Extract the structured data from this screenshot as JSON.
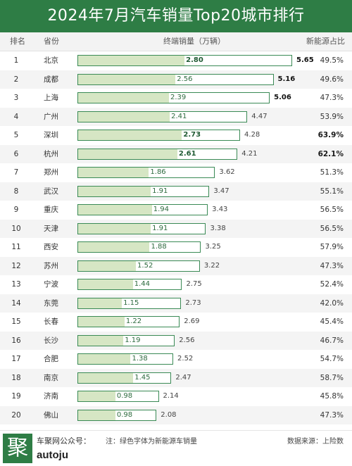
{
  "title": "2024年7月汽车销量Top20城市排行",
  "headers": {
    "rank": "排名",
    "province": "省份",
    "sales": "终端销量（万辆）",
    "share": "新能源占比"
  },
  "chart_data": {
    "type": "bar",
    "unit": "万辆",
    "categories": [
      "北京",
      "成都",
      "上海",
      "广州",
      "深圳",
      "杭州",
      "郑州",
      "武汉",
      "重庆",
      "天津",
      "西安",
      "苏州",
      "宁波",
      "东莞",
      "长春",
      "长沙",
      "合肥",
      "南京",
      "济南",
      "佛山"
    ],
    "series": [
      {
        "name": "新能源车销量",
        "values": [
          2.8,
          2.56,
          2.39,
          2.41,
          2.73,
          2.61,
          1.86,
          1.91,
          1.94,
          1.91,
          1.88,
          1.52,
          1.44,
          1.15,
          1.22,
          1.19,
          1.38,
          1.45,
          0.98,
          0.98
        ]
      },
      {
        "name": "终端销量",
        "values": [
          5.65,
          5.16,
          5.06,
          4.47,
          4.28,
          4.21,
          3.62,
          3.47,
          3.43,
          3.38,
          3.25,
          3.22,
          2.75,
          2.73,
          2.69,
          2.56,
          2.52,
          2.47,
          2.14,
          2.08
        ]
      }
    ],
    "ranks": [
      "1",
      "2",
      "3",
      "4",
      "5",
      "6",
      "7",
      "8",
      "9",
      "10",
      "11",
      "12",
      "13",
      "14",
      "15",
      "16",
      "17",
      "18",
      "19",
      "20"
    ],
    "shares": [
      "49.5%",
      "49.6%",
      "47.3%",
      "53.9%",
      "63.9%",
      "62.1%",
      "51.3%",
      "55.1%",
      "56.5%",
      "56.5%",
      "57.9%",
      "47.3%",
      "52.4%",
      "42.0%",
      "45.4%",
      "46.7%",
      "54.7%",
      "58.7%",
      "45.8%",
      "47.3%"
    ],
    "share_bold": [
      false,
      false,
      false,
      false,
      true,
      true,
      false,
      false,
      false,
      false,
      false,
      false,
      false,
      false,
      false,
      false,
      false,
      false,
      false,
      false
    ],
    "nev_bold": [
      true,
      false,
      false,
      false,
      true,
      true,
      false,
      false,
      false,
      false,
      false,
      false,
      false,
      false,
      false,
      false,
      false,
      false,
      false,
      false
    ],
    "total_bold": [
      true,
      true,
      true,
      false,
      false,
      false,
      false,
      false,
      false,
      false,
      false,
      false,
      false,
      false,
      false,
      false,
      false,
      false,
      false,
      false
    ],
    "xlim": [
      0,
      5.65
    ],
    "colors": {
      "nev_fill": "#d6e6c4",
      "bar_border": "#3a8a55",
      "header": "#2e7d45"
    }
  },
  "footer": {
    "logo_char": "聚",
    "account_label": "车聚网公众号：",
    "account_id": "autoju",
    "note": "注：绿色字体为新能源车销量",
    "source": "数据来源：上险数"
  }
}
